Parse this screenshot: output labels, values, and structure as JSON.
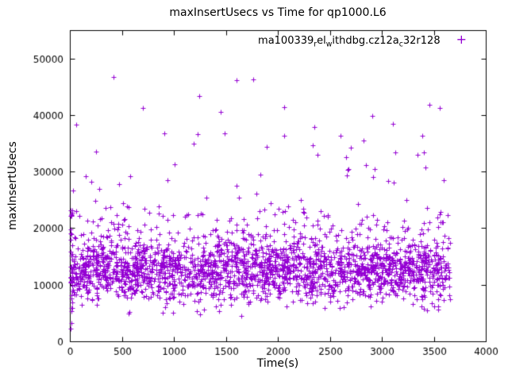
{
  "chart_data": {
    "type": "scatter",
    "title": "maxInsertUsecs vs Time for qp1000.L6",
    "xlabel": "Time(s)",
    "ylabel": "maxInsertUsecs",
    "xlim": [
      0,
      4000
    ],
    "ylim": [
      0,
      55000
    ],
    "xticks": [
      0,
      500,
      1000,
      1500,
      2000,
      2500,
      3000,
      3500,
      4000
    ],
    "yticks": [
      0,
      10000,
      20000,
      30000,
      40000,
      50000
    ],
    "grid": false,
    "marker": "plus",
    "color": "#9400D3",
    "legend": {
      "label": "ma100339_rel_withdbg.cz12a_c32r128",
      "segments": [
        {
          "t": "ma100339"
        },
        {
          "t": "r",
          "sub": true
        },
        {
          "t": "el"
        },
        {
          "t": "w",
          "sub": true
        },
        {
          "t": "ithdbg.cz12a"
        },
        {
          "t": "c",
          "sub": true
        },
        {
          "t": "32r128"
        }
      ],
      "marker_glyph": "+",
      "position": "top-right-inside"
    },
    "point_cloud": {
      "seed": 1337,
      "n": 2400,
      "x_min": 15,
      "x_max": 3655,
      "y_mean": 12600,
      "y_spread": 4500,
      "tail_prob": 0.16,
      "tail_add": 9500,
      "high_prob": 0.012,
      "high_base": 27000,
      "high_add": 10000,
      "low_prob": 0.005,
      "low_base": 2600,
      "low_add": 3200,
      "clamp_min": 4300
    },
    "left_strip": {
      "x_min": 4,
      "x_max": 26,
      "n": 28,
      "y_min": 1800,
      "y_max": 24000
    },
    "outliers": [
      [
        60,
        38300
      ],
      [
        250,
        33500
      ],
      [
        420,
        46700
      ],
      [
        700,
        41300
      ],
      [
        905,
        36800
      ],
      [
        1245,
        43300
      ],
      [
        1450,
        40600
      ],
      [
        1600,
        46100
      ],
      [
        1760,
        46300
      ],
      [
        2060,
        41400
      ],
      [
        2350,
        37900
      ],
      [
        2600,
        36400
      ],
      [
        2905,
        39800
      ],
      [
        3105,
        38500
      ],
      [
        3455,
        41800
      ],
      [
        3555,
        41300
      ]
    ]
  }
}
